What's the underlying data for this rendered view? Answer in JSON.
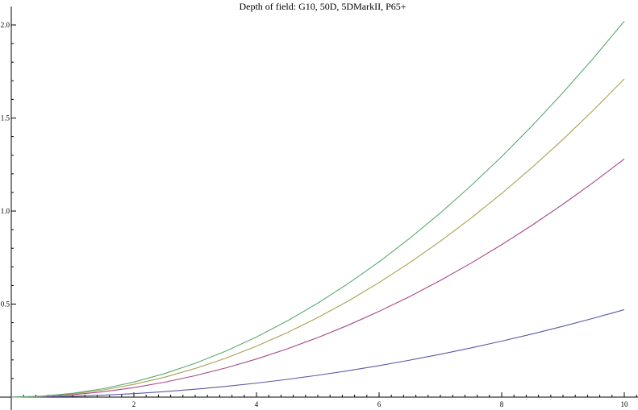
{
  "chart_data": {
    "type": "line",
    "title": "Depth of field: G10, 50D, 5DMarkII, P65+",
    "xlabel": "",
    "ylabel": "",
    "xlim": [
      0,
      10
    ],
    "ylim": [
      0,
      2.0
    ],
    "x_ticks": [
      2,
      4,
      6,
      8,
      10
    ],
    "y_ticks": [
      0.5,
      1.0,
      1.5,
      2.0
    ],
    "grid": false,
    "legend": "none",
    "x": [
      0,
      0.5,
      1,
      1.5,
      2,
      2.5,
      3,
      3.5,
      4,
      4.5,
      5,
      5.5,
      6,
      6.5,
      7,
      7.5,
      8,
      8.5,
      9,
      9.5,
      10
    ],
    "series": [
      {
        "color": "#5a5aa8",
        "values": [
          0.0,
          0.0012,
          0.0047,
          0.0106,
          0.0188,
          0.0294,
          0.0423,
          0.0576,
          0.0752,
          0.0952,
          0.1175,
          0.1422,
          0.1692,
          0.1986,
          0.2303,
          0.2644,
          0.3008,
          0.3396,
          0.3807,
          0.4242,
          0.47
        ]
      },
      {
        "color": "#a8488a",
        "values": [
          0.0,
          0.0032,
          0.0128,
          0.0288,
          0.0512,
          0.08,
          0.1152,
          0.1568,
          0.2048,
          0.2592,
          0.32,
          0.3872,
          0.4608,
          0.5408,
          0.6272,
          0.72,
          0.8192,
          0.9248,
          1.0368,
          1.1552,
          1.28
        ]
      },
      {
        "color": "#a8a050",
        "values": [
          0.0,
          0.0043,
          0.0171,
          0.0385,
          0.0684,
          0.1069,
          0.1539,
          0.2095,
          0.2736,
          0.3463,
          0.4275,
          0.5173,
          0.6156,
          0.7225,
          0.8379,
          0.9619,
          1.0944,
          1.2355,
          1.3851,
          1.5433,
          1.71
        ]
      },
      {
        "color": "#5aaa70",
        "values": [
          0.0,
          0.0051,
          0.0202,
          0.0455,
          0.0808,
          0.1263,
          0.1818,
          0.2475,
          0.3232,
          0.4091,
          0.505,
          0.6111,
          0.7272,
          0.8535,
          0.9898,
          1.1363,
          1.2928,
          1.4595,
          1.6362,
          1.8231,
          2.02
        ]
      }
    ]
  }
}
